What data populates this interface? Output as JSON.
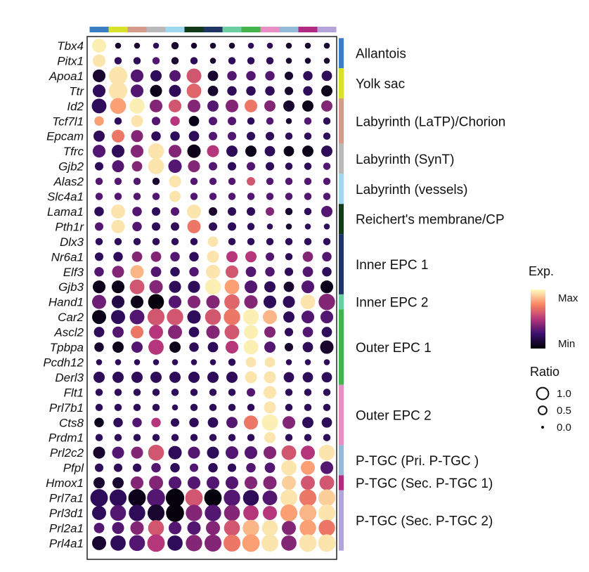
{
  "chart_data": {
    "type": "dotplot",
    "genes": [
      "Tbx4",
      "Pitx1",
      "Apoa1",
      "Ttr",
      "Id2",
      "Tcf7l1",
      "Epcam",
      "Tfrc",
      "Gjb2",
      "Alas2",
      "Slc4a1",
      "Lama1",
      "Pth1r",
      "Dlx3",
      "Nr6a1",
      "Elf3",
      "Gjb3",
      "Hand1",
      "Car2",
      "Ascl2",
      "Tpbpa",
      "Pcdh12",
      "Derl3",
      "Flt1",
      "Prl7b1",
      "Cts8",
      "Prdm1",
      "Prl2c2",
      "Pfpl",
      "Hmox1",
      "Prl7a1",
      "Prl3d1",
      "Prl2a1",
      "Prl4a1"
    ],
    "clusters": 13,
    "cluster_colors": [
      "#3a7fc1",
      "#d9e22a",
      "#d49a8c",
      "#b9b9b9",
      "#9fd8ee",
      "#133a1b",
      "#1f3565",
      "#6ccea0",
      "#43b34a",
      "#e88ec4",
      "#94b9d9",
      "#b22a82",
      "#b3a5db"
    ],
    "groups": [
      {
        "label": "Allantois",
        "color": "#3a7fc1",
        "rows": [
          0,
          1
        ]
      },
      {
        "label": "Yolk sac",
        "color": "#d9e22a",
        "rows": [
          2,
          3
        ]
      },
      {
        "label": "Labyrinth (LaTP)/Chorion",
        "color": "#d49a8c",
        "rows": [
          4,
          6
        ]
      },
      {
        "label": "Labyrinth (SynT)",
        "color": "#b9b9b9",
        "rows": [
          7,
          8
        ]
      },
      {
        "label": "Labyrinth (vessels)",
        "color": "#9fd8ee",
        "rows": [
          9,
          10
        ]
      },
      {
        "label": "Reichert's membrane/CP",
        "color": "#133a1b",
        "rows": [
          11,
          12
        ]
      },
      {
        "label": "Inner EPC 1",
        "color": "#1f3565",
        "rows": [
          13,
          16
        ]
      },
      {
        "label": "Inner EPC 2",
        "color": "#6ccea0",
        "rows": [
          17,
          17
        ]
      },
      {
        "label": "Outer EPC 1",
        "color": "#43b34a",
        "rows": [
          18,
          22
        ]
      },
      {
        "label": "Outer EPC 2",
        "color": "#e88ec4",
        "rows": [
          23,
          26
        ]
      },
      {
        "label": "P-TGC (Pri. P-TGC )",
        "color": "#94b9d9",
        "rows": [
          27,
          28
        ]
      },
      {
        "label": "P-TGC (Sec. P-TGC 1)",
        "color": "#b22a82",
        "rows": [
          29,
          29
        ]
      },
      {
        "label": "P-TGC (Sec. P-TGC 2)",
        "color": "#b3a5db",
        "rows": [
          30,
          33
        ]
      }
    ],
    "expression": [
      [
        0.97,
        0.1,
        0.1,
        0.2,
        0.1,
        0.1,
        0.1,
        0.1,
        0.2,
        0.2,
        0.1,
        0.1,
        0.1
      ],
      [
        0.95,
        0.2,
        0.2,
        0.3,
        0.1,
        0.2,
        0.1,
        0.2,
        0.2,
        0.2,
        0.1,
        0.1,
        0.1
      ],
      [
        0.1,
        0.95,
        0.3,
        0.2,
        0.3,
        0.6,
        0.1,
        0.3,
        0.3,
        0.3,
        0.1,
        0.2,
        0.2
      ],
      [
        0.2,
        0.95,
        0.3,
        0.05,
        0.2,
        0.65,
        0.1,
        0.2,
        0.2,
        0.2,
        0.1,
        0.2,
        0.05
      ],
      [
        0.2,
        0.8,
        0.97,
        0.4,
        0.6,
        0.4,
        0.3,
        0.4,
        0.7,
        0.4,
        0.1,
        0.05,
        0.4
      ],
      [
        0.8,
        0.2,
        0.95,
        0.3,
        0.5,
        0.05,
        0.3,
        0.3,
        0.2,
        0.3,
        0.1,
        0.3,
        0.2
      ],
      [
        0.2,
        0.7,
        0.4,
        0.2,
        0.2,
        0.2,
        0.3,
        0.3,
        0.2,
        0.2,
        0.2,
        0.2,
        0.2
      ],
      [
        0.3,
        0.2,
        0.4,
        0.95,
        0.4,
        0.05,
        0.5,
        0.2,
        0.05,
        0.2,
        0.05,
        0.05,
        0.2
      ],
      [
        0.2,
        0.3,
        0.4,
        0.95,
        0.3,
        0.4,
        0.3,
        0.2,
        0.3,
        0.2,
        0.2,
        0.2,
        0.3
      ],
      [
        0.3,
        0.3,
        0.3,
        0.1,
        0.95,
        0.3,
        0.3,
        0.3,
        0.6,
        0.3,
        0.3,
        0.3,
        0.3
      ],
      [
        0.3,
        0.3,
        0.3,
        0.3,
        0.95,
        0.3,
        0.3,
        0.3,
        0.3,
        0.3,
        0.3,
        0.3,
        0.3
      ],
      [
        0.2,
        0.95,
        0.3,
        0.2,
        0.3,
        0.95,
        0.1,
        0.2,
        0.2,
        0.4,
        0.1,
        0.2,
        0.3
      ],
      [
        0.3,
        0.95,
        0.3,
        0.2,
        0.2,
        0.7,
        0.2,
        0.2,
        0.2,
        0.2,
        0.1,
        0.2,
        0.2
      ],
      [
        0.2,
        0.2,
        0.2,
        0.2,
        0.2,
        0.2,
        0.95,
        0.2,
        0.2,
        0.2,
        0.2,
        0.2,
        0.2
      ],
      [
        0.2,
        0.2,
        0.4,
        0.4,
        0.3,
        0.2,
        0.95,
        0.5,
        0.5,
        0.3,
        0.2,
        0.4,
        0.3
      ],
      [
        0.3,
        0.4,
        0.85,
        0.3,
        0.2,
        0.3,
        0.95,
        0.6,
        0.3,
        0.3,
        0.2,
        0.3,
        0.2
      ],
      [
        0.05,
        0.05,
        0.6,
        0.4,
        0.2,
        0.2,
        0.97,
        0.8,
        0.3,
        0.2,
        0.1,
        0.3,
        0.05
      ],
      [
        0.35,
        0.15,
        0.05,
        0.02,
        0.3,
        0.4,
        0.4,
        0.65,
        0.4,
        0.2,
        0.2,
        0.95,
        0.4
      ],
      [
        0.05,
        0.2,
        0.3,
        0.6,
        0.6,
        0.2,
        0.6,
        0.7,
        0.97,
        0.85,
        0.2,
        0.3,
        0.3
      ],
      [
        0.2,
        0.3,
        0.7,
        0.5,
        0.4,
        0.2,
        0.4,
        0.6,
        0.97,
        0.4,
        0.2,
        0.3,
        0.2
      ],
      [
        0.1,
        0.05,
        0.3,
        0.5,
        0.05,
        0.2,
        0.2,
        0.5,
        0.97,
        0.3,
        0.1,
        0.2,
        0.1
      ],
      [
        0.2,
        0.2,
        0.2,
        0.2,
        0.2,
        0.2,
        0.2,
        0.2,
        0.95,
        0.95,
        0.2,
        0.2,
        0.2
      ],
      [
        0.2,
        0.2,
        0.2,
        0.2,
        0.2,
        0.2,
        0.2,
        0.2,
        0.95,
        0.95,
        0.2,
        0.2,
        0.2
      ],
      [
        0.2,
        0.2,
        0.2,
        0.2,
        0.2,
        0.2,
        0.2,
        0.2,
        0.3,
        0.95,
        0.2,
        0.2,
        0.2
      ],
      [
        0.2,
        0.2,
        0.2,
        0.2,
        0.2,
        0.2,
        0.2,
        0.2,
        0.2,
        0.95,
        0.2,
        0.2,
        0.2
      ],
      [
        0.05,
        0.2,
        0.3,
        0.5,
        0.2,
        0.2,
        0.2,
        0.3,
        0.7,
        0.97,
        0.4,
        0.2,
        0.2
      ],
      [
        0.2,
        0.2,
        0.2,
        0.2,
        0.2,
        0.2,
        0.2,
        0.2,
        0.2,
        0.95,
        0.2,
        0.2,
        0.2
      ],
      [
        0.1,
        0.3,
        0.4,
        0.6,
        0.2,
        0.3,
        0.2,
        0.3,
        0.3,
        0.4,
        0.6,
        0.5,
        0.95
      ],
      [
        0.2,
        0.2,
        0.2,
        0.3,
        0.2,
        0.3,
        0.2,
        0.2,
        0.3,
        0.3,
        0.95,
        0.8,
        0.3
      ],
      [
        0.1,
        0.1,
        0.4,
        0.4,
        0.3,
        0.3,
        0.3,
        0.3,
        0.4,
        0.4,
        0.9,
        0.6,
        0.6
      ],
      [
        0.2,
        0.2,
        0.05,
        0.3,
        0.02,
        0.6,
        0.02,
        0.3,
        0.2,
        0.3,
        0.95,
        0.7,
        0.9
      ],
      [
        0.2,
        0.3,
        0.2,
        0.1,
        0.02,
        0.4,
        0.3,
        0.4,
        0.5,
        0.5,
        0.8,
        0.85,
        0.95
      ],
      [
        0.3,
        0.3,
        0.4,
        0.6,
        0.3,
        0.3,
        0.4,
        0.6,
        0.85,
        0.95,
        0.4,
        0.8,
        0.7
      ],
      [
        0.1,
        0.2,
        0.3,
        0.5,
        0.2,
        0.4,
        0.4,
        0.7,
        0.8,
        0.95,
        0.4,
        0.95,
        0.95
      ]
    ],
    "ratio": [
      [
        0.55,
        0.1,
        0.1,
        0.1,
        0.15,
        0.1,
        0.1,
        0.1,
        0.1,
        0.1,
        0.1,
        0.1,
        0.1
      ],
      [
        0.45,
        0.15,
        0.15,
        0.15,
        0.15,
        0.15,
        0.1,
        0.15,
        0.15,
        0.15,
        0.1,
        0.1,
        0.1
      ],
      [
        0.45,
        0.95,
        0.45,
        0.35,
        0.35,
        0.6,
        0.3,
        0.25,
        0.25,
        0.25,
        0.2,
        0.25,
        0.3
      ],
      [
        0.45,
        0.95,
        0.45,
        0.4,
        0.4,
        0.6,
        0.3,
        0.25,
        0.25,
        0.25,
        0.2,
        0.25,
        0.35
      ],
      [
        0.6,
        0.7,
        0.65,
        0.45,
        0.45,
        0.45,
        0.35,
        0.45,
        0.45,
        0.35,
        0.35,
        0.35,
        0.35
      ],
      [
        0.25,
        0.15,
        0.4,
        0.2,
        0.25,
        0.3,
        0.2,
        0.2,
        0.15,
        0.15,
        0.1,
        0.15,
        0.15
      ],
      [
        0.35,
        0.45,
        0.4,
        0.25,
        0.25,
        0.3,
        0.2,
        0.2,
        0.2,
        0.2,
        0.15,
        0.15,
        0.15
      ],
      [
        0.45,
        0.45,
        0.45,
        0.7,
        0.45,
        0.5,
        0.4,
        0.35,
        0.35,
        0.3,
        0.3,
        0.35,
        0.35
      ],
      [
        0.2,
        0.4,
        0.3,
        0.7,
        0.5,
        0.4,
        0.2,
        0.2,
        0.2,
        0.2,
        0.15,
        0.15,
        0.15
      ],
      [
        0.15,
        0.15,
        0.15,
        0.15,
        0.4,
        0.15,
        0.15,
        0.15,
        0.2,
        0.15,
        0.15,
        0.15,
        0.15
      ],
      [
        0.15,
        0.15,
        0.15,
        0.15,
        0.35,
        0.15,
        0.15,
        0.15,
        0.15,
        0.15,
        0.15,
        0.15,
        0.15
      ],
      [
        0.25,
        0.55,
        0.25,
        0.2,
        0.2,
        0.55,
        0.2,
        0.2,
        0.2,
        0.2,
        0.15,
        0.15,
        0.35
      ],
      [
        0.2,
        0.5,
        0.25,
        0.2,
        0.2,
        0.5,
        0.2,
        0.2,
        0.15,
        0.1,
        0.1,
        0.1,
        0.1
      ],
      [
        0.15,
        0.15,
        0.15,
        0.15,
        0.15,
        0.15,
        0.3,
        0.15,
        0.15,
        0.15,
        0.15,
        0.15,
        0.15
      ],
      [
        0.2,
        0.25,
        0.3,
        0.3,
        0.25,
        0.25,
        0.4,
        0.35,
        0.35,
        0.2,
        0.15,
        0.3,
        0.25
      ],
      [
        0.25,
        0.4,
        0.5,
        0.3,
        0.25,
        0.25,
        0.55,
        0.45,
        0.3,
        0.25,
        0.2,
        0.3,
        0.25
      ],
      [
        0.45,
        0.45,
        0.6,
        0.5,
        0.4,
        0.4,
        0.7,
        0.6,
        0.45,
        0.35,
        0.3,
        0.45,
        0.45
      ],
      [
        0.55,
        0.45,
        0.45,
        0.7,
        0.45,
        0.45,
        0.5,
        0.65,
        0.5,
        0.45,
        0.4,
        0.6,
        0.75
      ],
      [
        0.55,
        0.55,
        0.6,
        0.8,
        0.75,
        0.5,
        0.7,
        0.75,
        0.7,
        0.55,
        0.35,
        0.45,
        0.45
      ],
      [
        0.3,
        0.35,
        0.45,
        0.55,
        0.55,
        0.3,
        0.5,
        0.6,
        0.55,
        0.35,
        0.2,
        0.3,
        0.3
      ],
      [
        0.25,
        0.35,
        0.35,
        0.65,
        0.35,
        0.25,
        0.3,
        0.45,
        0.6,
        0.35,
        0.2,
        0.3,
        0.5
      ],
      [
        0.1,
        0.1,
        0.1,
        0.1,
        0.1,
        0.1,
        0.1,
        0.15,
        0.3,
        0.3,
        0.1,
        0.1,
        0.1
      ],
      [
        0.35,
        0.35,
        0.35,
        0.35,
        0.35,
        0.35,
        0.35,
        0.35,
        0.4,
        0.4,
        0.3,
        0.3,
        0.3
      ],
      [
        0.15,
        0.15,
        0.15,
        0.15,
        0.15,
        0.15,
        0.15,
        0.15,
        0.2,
        0.45,
        0.15,
        0.15,
        0.15
      ],
      [
        0.15,
        0.15,
        0.15,
        0.15,
        0.1,
        0.15,
        0.15,
        0.15,
        0.15,
        0.4,
        0.15,
        0.15,
        0.15
      ],
      [
        0.25,
        0.25,
        0.25,
        0.25,
        0.2,
        0.25,
        0.3,
        0.35,
        0.55,
        0.75,
        0.45,
        0.35,
        0.3
      ],
      [
        0.15,
        0.15,
        0.15,
        0.15,
        0.15,
        0.15,
        0.15,
        0.15,
        0.15,
        0.35,
        0.15,
        0.15,
        0.15
      ],
      [
        0.4,
        0.4,
        0.4,
        0.7,
        0.5,
        0.4,
        0.4,
        0.45,
        0.45,
        0.45,
        0.6,
        0.55,
        0.7
      ],
      [
        0.2,
        0.2,
        0.2,
        0.25,
        0.25,
        0.2,
        0.25,
        0.2,
        0.25,
        0.3,
        0.65,
        0.55,
        0.45
      ],
      [
        0.35,
        0.35,
        0.45,
        0.55,
        0.45,
        0.45,
        0.45,
        0.45,
        0.45,
        0.5,
        0.55,
        0.55,
        0.6
      ],
      [
        0.85,
        0.8,
        0.85,
        0.9,
        0.95,
        0.85,
        0.85,
        0.75,
        0.7,
        0.6,
        0.8,
        0.8,
        0.8
      ],
      [
        0.55,
        0.7,
        0.75,
        0.8,
        0.9,
        0.75,
        0.75,
        0.7,
        0.65,
        0.55,
        0.8,
        0.8,
        0.8
      ],
      [
        0.3,
        0.4,
        0.5,
        0.7,
        0.45,
        0.5,
        0.55,
        0.7,
        0.75,
        0.7,
        0.55,
        0.75,
        0.75
      ],
      [
        0.55,
        0.65,
        0.7,
        0.85,
        0.65,
        0.75,
        0.8,
        0.8,
        0.85,
        0.8,
        0.65,
        0.85,
        0.85
      ]
    ],
    "legend_exp": {
      "title": "Exp.",
      "max_label": "Max",
      "min_label": "Min"
    },
    "legend_ratio": {
      "title": "Ratio",
      "entries": [
        {
          "label": "1.0",
          "value": 1.0
        },
        {
          "label": "0.5",
          "value": 0.5
        },
        {
          "label": "0.0",
          "value": 0.0
        }
      ]
    }
  }
}
